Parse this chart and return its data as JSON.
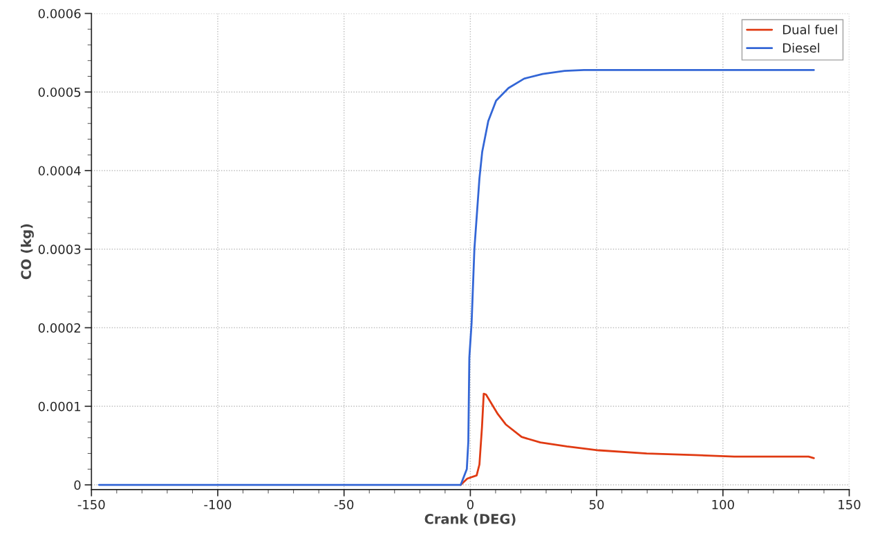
{
  "chart_data": {
    "type": "line",
    "xlabel": "Crank (DEG)",
    "ylabel": "CO (kg)",
    "xlim": [
      -150,
      150
    ],
    "xticks": [
      -150,
      -100,
      -50,
      0,
      50,
      100,
      150
    ],
    "ylim": [
      -6e-06,
      0.0006
    ],
    "yticks": [
      {
        "value": 0,
        "label": "0"
      },
      {
        "value": 0.0001,
        "label": "0.0001"
      },
      {
        "value": 0.0002,
        "label": "0.0002"
      },
      {
        "value": 0.0003,
        "label": "0.0003"
      },
      {
        "value": 0.0004,
        "label": "0.0004"
      },
      {
        "value": 0.0005,
        "label": "0.0005"
      },
      {
        "value": 0.0006,
        "label": "0.0006"
      }
    ],
    "grid": true,
    "legend": "top right",
    "line_style": "solid",
    "marker": "none",
    "series": [
      {
        "name": "Dual fuel",
        "color": "#e03a12",
        "x": [
          -3.8,
          -1.2,
          2.5,
          3.6,
          4.6,
          5.3,
          6.2,
          10.9,
          14,
          20.3,
          27.7,
          38.2,
          50.8,
          69.8,
          88.7,
          104.5,
          133.9,
          136
        ],
        "values": [
          0,
          8e-06,
          1.2e-05,
          2.6e-05,
          7.3e-05,
          0.000116,
          0.000115,
          9e-05,
          7.7e-05,
          6.1e-05,
          5.4e-05,
          4.9e-05,
          4.4e-05,
          4e-05,
          3.8e-05,
          3.6e-05,
          3.6e-05,
          3.4e-05
        ]
      },
      {
        "name": "Diesel",
        "color": "#3366d6",
        "x": [
          -147,
          -3.8,
          -1.4,
          -0.8,
          -0.4,
          0.5,
          1.6,
          3.6,
          4.7,
          7.1,
          10.2,
          15.1,
          21.3,
          28.6,
          37.3,
          45,
          136
        ],
        "values": [
          0,
          0,
          2e-05,
          5.5e-05,
          0.000162,
          0.000206,
          0.0003,
          0.00039,
          0.000424,
          0.000463,
          0.000489,
          0.000505,
          0.000517,
          0.000523,
          0.000527,
          0.000528,
          0.000528
        ]
      }
    ]
  }
}
